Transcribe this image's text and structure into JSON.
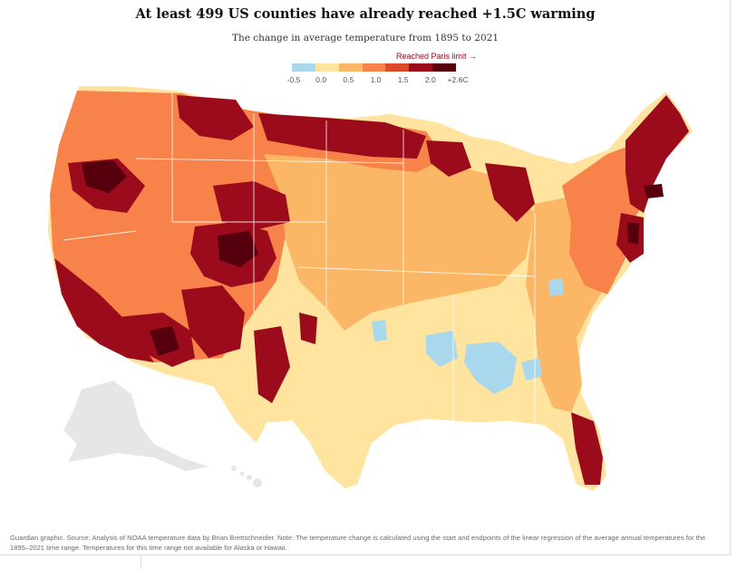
{
  "header": {
    "title": "At least 499 US counties have already reached +1.5C warming",
    "subtitle": "The change in average temperature from 1895 to 2021",
    "paris_label": "Reached Paris limit",
    "paris_arrow": "→"
  },
  "legend": {
    "ticks": [
      "-0.5",
      "0.0",
      "0.5",
      "1.0",
      "1.5",
      "2.0",
      "+2.6C"
    ],
    "colors": [
      "#a9d8ec",
      "#fee49f",
      "#fbb765",
      "#f7824a",
      "#dc4a2c",
      "#9b0b1c",
      "#55000c"
    ]
  },
  "map": {
    "no_data_color": "#e6e6e6",
    "border_color": "#ffffff",
    "regions_no_data": [
      "Alaska",
      "Hawaii"
    ]
  },
  "footer": {
    "source": "Guardian graphic. Source: Analysis of NOAA temperature data by Brian Brettschneider. Note: The temperature change is calculated using the start and endpoints of the linear regression of the average annual temperatures for the 1895–2021 time range. Temperatures for this time range not available for Alaska or Hawaii."
  }
}
